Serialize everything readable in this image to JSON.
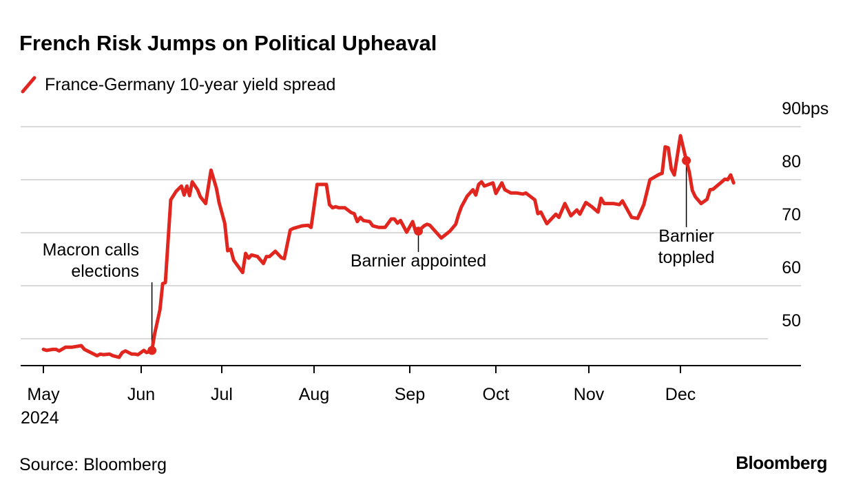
{
  "chart_data": {
    "type": "line",
    "title": "French Risk Jumps on Political Upheaval",
    "legend": {
      "placement": "top-left",
      "entries": [
        "France-Germany 10-year yield spread"
      ]
    },
    "series": [
      {
        "name": "France-Germany 10-year yield spread",
        "color": "#e0261f",
        "points": [
          [
            "2024-05-01",
            48.0
          ],
          [
            "2024-05-02",
            47.8
          ],
          [
            "2024-05-04",
            48.0
          ],
          [
            "2024-05-05",
            48.0
          ],
          [
            "2024-05-06",
            47.7
          ],
          [
            "2024-05-08",
            48.4
          ],
          [
            "2024-05-10",
            48.4
          ],
          [
            "2024-05-13",
            48.7
          ],
          [
            "2024-05-14",
            48.0
          ],
          [
            "2024-05-16",
            47.4
          ],
          [
            "2024-05-18",
            46.8
          ],
          [
            "2024-05-19",
            47.1
          ],
          [
            "2024-05-20",
            47.0
          ],
          [
            "2024-05-22",
            47.1
          ],
          [
            "2024-05-23",
            46.8
          ],
          [
            "2024-05-25",
            46.5
          ],
          [
            "2024-05-26",
            47.4
          ],
          [
            "2024-05-27",
            47.7
          ],
          [
            "2024-05-29",
            47.1
          ],
          [
            "2024-05-30",
            47.1
          ],
          [
            "2024-05-31",
            47.0
          ],
          [
            "2024-06-02",
            47.8
          ],
          [
            "2024-06-03",
            47.4
          ],
          [
            "2024-06-05",
            47.8
          ],
          [
            "2024-06-06",
            50.9
          ],
          [
            "2024-06-08",
            55.5
          ],
          [
            "2024-06-09",
            60.4
          ],
          [
            "2024-06-10",
            60.6
          ],
          [
            "2024-06-12",
            76.2
          ],
          [
            "2024-06-14",
            77.8
          ],
          [
            "2024-06-16",
            78.8
          ],
          [
            "2024-06-17",
            77.1
          ],
          [
            "2024-06-18",
            78.8
          ],
          [
            "2024-06-19",
            77.0
          ],
          [
            "2024-06-20",
            79.6
          ],
          [
            "2024-06-22",
            78.1
          ],
          [
            "2024-06-23",
            76.8
          ],
          [
            "2024-06-25",
            75.5
          ],
          [
            "2024-06-27",
            81.8
          ],
          [
            "2024-06-29",
            78.4
          ],
          [
            "2024-06-30",
            75.7
          ],
          [
            "2024-07-02",
            71.8
          ],
          [
            "2024-07-03",
            66.6
          ],
          [
            "2024-07-04",
            66.9
          ],
          [
            "2024-07-05",
            64.8
          ],
          [
            "2024-07-08",
            62.5
          ],
          [
            "2024-07-09",
            66.1
          ],
          [
            "2024-07-10",
            65.2
          ],
          [
            "2024-07-11",
            65.8
          ],
          [
            "2024-07-13",
            65.5
          ],
          [
            "2024-07-15",
            64.2
          ],
          [
            "2024-07-16",
            65.5
          ],
          [
            "2024-07-17",
            65.5
          ],
          [
            "2024-07-19",
            66.5
          ],
          [
            "2024-07-21",
            65.3
          ],
          [
            "2024-07-22",
            65.1
          ],
          [
            "2024-07-24",
            70.5
          ],
          [
            "2024-07-25",
            70.8
          ],
          [
            "2024-07-28",
            71.3
          ],
          [
            "2024-07-30",
            71.4
          ],
          [
            "2024-07-31",
            71.0
          ],
          [
            "2024-08-02",
            79.1
          ],
          [
            "2024-08-05",
            79.1
          ],
          [
            "2024-08-06",
            75.3
          ],
          [
            "2024-08-07",
            74.7
          ],
          [
            "2024-08-08",
            74.9
          ],
          [
            "2024-08-09",
            74.7
          ],
          [
            "2024-08-11",
            74.7
          ],
          [
            "2024-08-13",
            73.8
          ],
          [
            "2024-08-14",
            73.6
          ],
          [
            "2024-08-15",
            72.1
          ],
          [
            "2024-08-16",
            72.9
          ],
          [
            "2024-08-17",
            72.3
          ],
          [
            "2024-08-19",
            72.1
          ],
          [
            "2024-08-20",
            71.3
          ],
          [
            "2024-08-22",
            71.0
          ],
          [
            "2024-08-24",
            71.0
          ],
          [
            "2024-08-26",
            72.6
          ],
          [
            "2024-08-27",
            72.6
          ],
          [
            "2024-08-28",
            71.8
          ],
          [
            "2024-08-29",
            72.3
          ],
          [
            "2024-08-31",
            70.1
          ],
          [
            "2024-09-02",
            72.1
          ],
          [
            "2024-09-03",
            70.3
          ],
          [
            "2024-09-04",
            70.3
          ],
          [
            "2024-09-06",
            71.3
          ],
          [
            "2024-09-07",
            71.6
          ],
          [
            "2024-09-08",
            71.4
          ],
          [
            "2024-09-12",
            69.0
          ],
          [
            "2024-09-15",
            70.3
          ],
          [
            "2024-09-17",
            71.6
          ],
          [
            "2024-09-18",
            73.4
          ],
          [
            "2024-09-19",
            74.9
          ],
          [
            "2024-09-21",
            76.9
          ],
          [
            "2024-09-23",
            78.1
          ],
          [
            "2024-09-24",
            77.1
          ],
          [
            "2024-09-25",
            79.1
          ],
          [
            "2024-09-26",
            79.6
          ],
          [
            "2024-09-27",
            78.8
          ],
          [
            "2024-09-30",
            79.4
          ],
          [
            "2024-10-01",
            77.4
          ],
          [
            "2024-10-03",
            79.4
          ],
          [
            "2024-10-04",
            78.1
          ],
          [
            "2024-10-06",
            77.5
          ],
          [
            "2024-10-08",
            77.5
          ],
          [
            "2024-10-10",
            77.3
          ],
          [
            "2024-10-11",
            77.5
          ],
          [
            "2024-10-14",
            76.2
          ],
          [
            "2024-10-15",
            73.6
          ],
          [
            "2024-10-16",
            73.9
          ],
          [
            "2024-10-18",
            71.7
          ],
          [
            "2024-10-21",
            73.5
          ],
          [
            "2024-10-22",
            72.9
          ],
          [
            "2024-10-24",
            75.5
          ],
          [
            "2024-10-26",
            73.2
          ],
          [
            "2024-10-28",
            74.3
          ],
          [
            "2024-10-29",
            73.5
          ],
          [
            "2024-10-31",
            75.7
          ],
          [
            "2024-11-02",
            74.9
          ],
          [
            "2024-11-04",
            73.9
          ],
          [
            "2024-11-05",
            76.5
          ],
          [
            "2024-11-06",
            75.5
          ],
          [
            "2024-11-09",
            75.5
          ],
          [
            "2024-11-11",
            75.3
          ],
          [
            "2024-11-12",
            76.0
          ],
          [
            "2024-11-15",
            72.9
          ],
          [
            "2024-11-17",
            72.7
          ],
          [
            "2024-11-19",
            75.3
          ],
          [
            "2024-11-21",
            80.0
          ],
          [
            "2024-11-24",
            81.0
          ],
          [
            "2024-11-25",
            81.2
          ],
          [
            "2024-11-26",
            86.2
          ],
          [
            "2024-11-27",
            86.0
          ],
          [
            "2024-11-28",
            82.0
          ],
          [
            "2024-11-29",
            80.9
          ],
          [
            "2024-12-01",
            88.3
          ],
          [
            "2024-12-03",
            83.6
          ],
          [
            "2024-12-04",
            81.4
          ],
          [
            "2024-12-05",
            78.0
          ],
          [
            "2024-12-06",
            76.8
          ],
          [
            "2024-12-08",
            75.5
          ],
          [
            "2024-12-10",
            76.3
          ],
          [
            "2024-12-11",
            78.1
          ],
          [
            "2024-12-12",
            78.2
          ],
          [
            "2024-12-15",
            79.6
          ],
          [
            "2024-12-16",
            80.1
          ],
          [
            "2024-12-17",
            80.0
          ],
          [
            "2024-12-18",
            80.9
          ],
          [
            "2024-12-19",
            79.4
          ]
        ]
      }
    ],
    "y_axis": {
      "range": [
        45,
        90
      ],
      "ticks": [
        50,
        60,
        70,
        80,
        90
      ],
      "tick_labels": [
        "50",
        "60",
        "70",
        "80",
        "90"
      ],
      "unit": "bps",
      "position": "right",
      "grid": true
    },
    "x_axis": {
      "ticks": [
        "2024-05-01",
        "2024-06-01",
        "2024-07-01",
        "2024-08-01",
        "2024-09-01",
        "2024-10-01",
        "2024-11-01",
        "2024-12-01"
      ],
      "tick_labels": [
        "May",
        "Jun",
        "Jul",
        "Aug",
        "Sep",
        "Oct",
        "Nov",
        "Dec"
      ],
      "year_label": "2024"
    },
    "annotations": [
      {
        "date": "2024-06-05",
        "value": 47.8,
        "lines": [
          "Macron calls",
          "elections"
        ]
      },
      {
        "date": "2024-09-04",
        "value": 70.3,
        "lines": [
          "Barnier appointed"
        ]
      },
      {
        "date": "2024-12-03",
        "value": 83.6,
        "lines": [
          "Barnier",
          "toppled"
        ]
      }
    ]
  },
  "footer": {
    "source": "Source: Bloomberg",
    "logo": "Bloomberg"
  }
}
